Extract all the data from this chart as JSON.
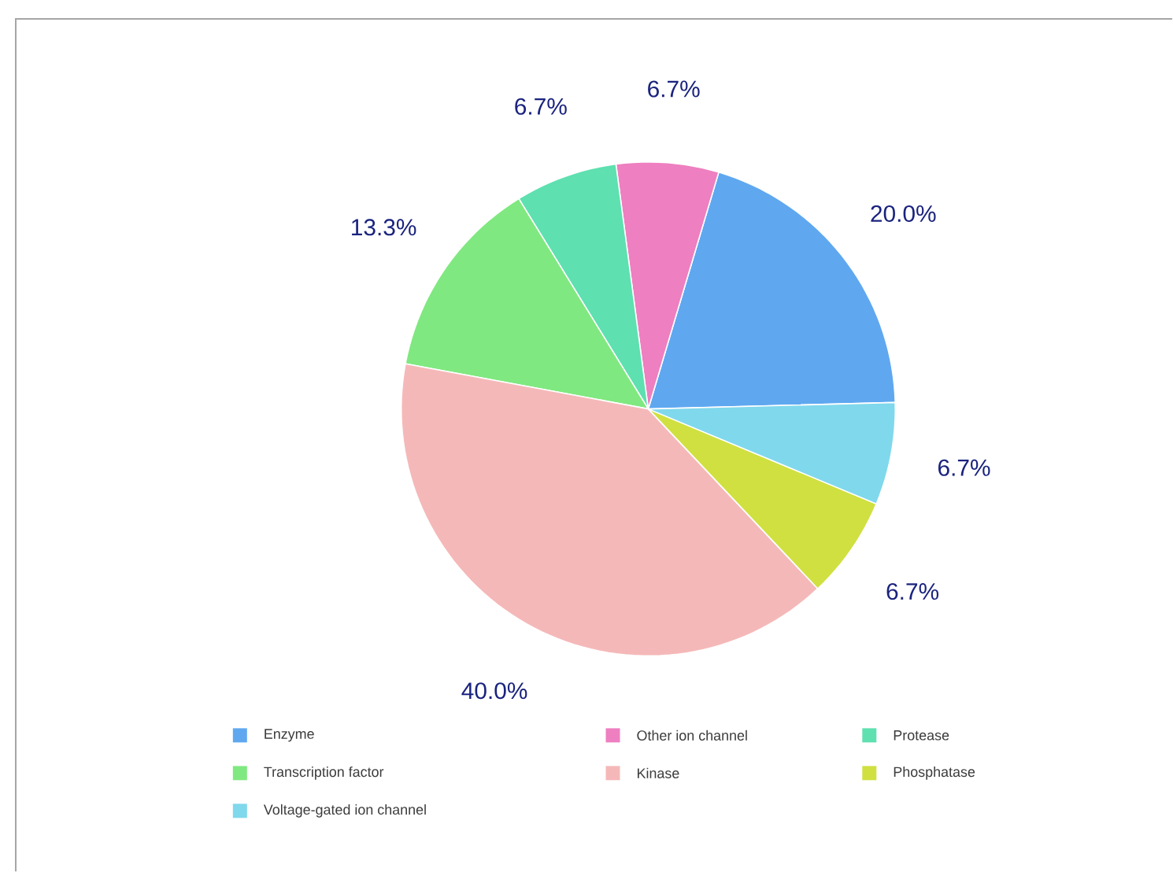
{
  "chart_data": {
    "type": "pie",
    "categories": [
      "Enzyme",
      "Other ion channel",
      "Protease",
      "Transcription factor",
      "Kinase",
      "Phosphatase",
      "Voltage-gated ion channel"
    ],
    "values": [
      20.0,
      6.7,
      6.7,
      13.3,
      40.0,
      6.7,
      6.7
    ],
    "value_labels": [
      "20.0%",
      "6.7%",
      "6.7%",
      "13.3%",
      "40.0%",
      "6.7%",
      "6.7%"
    ],
    "colors": [
      "#5fa8f0",
      "#ee7fc0",
      "#5ee0b0",
      "#80e880",
      "#f5b8b8",
      "#d0e040",
      "#80d8ec"
    ],
    "legend": "bottom"
  }
}
